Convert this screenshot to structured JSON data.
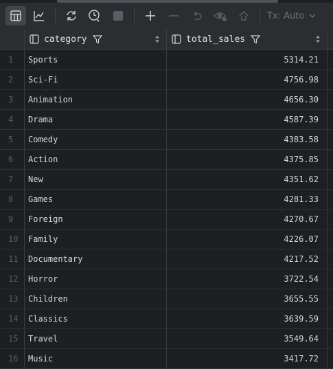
{
  "toolbar": {
    "tx_mode": "Tx: Auto"
  },
  "columns": {
    "category": "category",
    "total_sales": "total_sales"
  },
  "rows": [
    {
      "n": "1",
      "category": "Sports",
      "total_sales": "5314.21"
    },
    {
      "n": "2",
      "category": "Sci-Fi",
      "total_sales": "4756.98"
    },
    {
      "n": "3",
      "category": "Animation",
      "total_sales": "4656.30"
    },
    {
      "n": "4",
      "category": "Drama",
      "total_sales": "4587.39"
    },
    {
      "n": "5",
      "category": "Comedy",
      "total_sales": "4383.58"
    },
    {
      "n": "6",
      "category": "Action",
      "total_sales": "4375.85"
    },
    {
      "n": "7",
      "category": "New",
      "total_sales": "4351.62"
    },
    {
      "n": "8",
      "category": "Games",
      "total_sales": "4281.33"
    },
    {
      "n": "9",
      "category": "Foreign",
      "total_sales": "4270.67"
    },
    {
      "n": "10",
      "category": "Family",
      "total_sales": "4226.07"
    },
    {
      "n": "11",
      "category": "Documentary",
      "total_sales": "4217.52"
    },
    {
      "n": "12",
      "category": "Horror",
      "total_sales": "3722.54"
    },
    {
      "n": "13",
      "category": "Children",
      "total_sales": "3655.55"
    },
    {
      "n": "14",
      "category": "Classics",
      "total_sales": "3639.59"
    },
    {
      "n": "15",
      "category": "Travel",
      "total_sales": "3549.64"
    },
    {
      "n": "16",
      "category": "Music",
      "total_sales": "3417.72"
    }
  ]
}
